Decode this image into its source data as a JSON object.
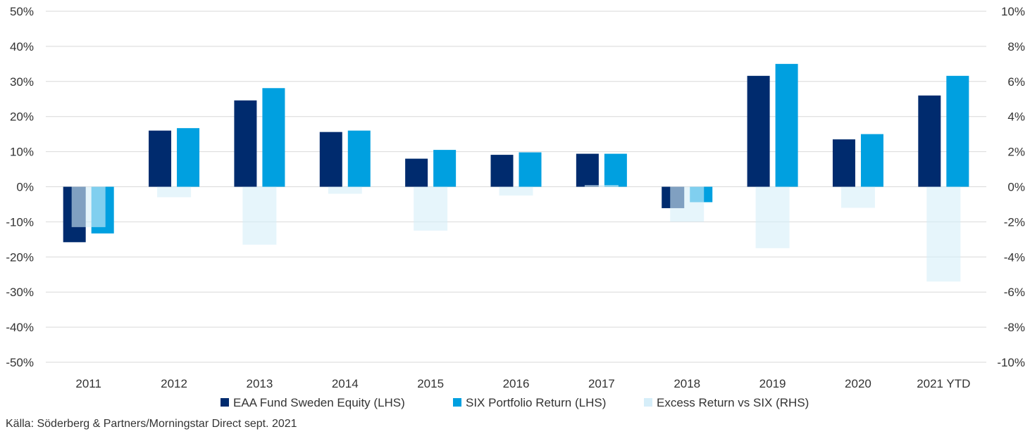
{
  "chart_data": {
    "type": "bar",
    "categories": [
      "2011",
      "2012",
      "2013",
      "2014",
      "2015",
      "2016",
      "2017",
      "2018",
      "2019",
      "2020",
      "2021 YTD"
    ],
    "series": [
      {
        "name": "EAA Fund Sweden Equity (LHS)",
        "axis": "left",
        "color": "#002b6e",
        "values": [
          -15.8,
          16.0,
          24.6,
          15.6,
          8.0,
          9.1,
          9.4,
          -6.1,
          31.6,
          13.5,
          26.0
        ]
      },
      {
        "name": "SIX Portfolio Return (LHS)",
        "axis": "left",
        "color": "#00a0e0",
        "values": [
          -13.3,
          16.7,
          28.1,
          16.0,
          10.5,
          9.8,
          9.4,
          -4.4,
          35.0,
          15.0,
          31.6
        ]
      },
      {
        "name": "Excess Return vs SIX (RHS)",
        "axis": "right",
        "color": "#d6eef9",
        "values": [
          -2.3,
          -0.6,
          -3.3,
          -0.4,
          -2.5,
          -0.5,
          0.1,
          -2.0,
          -3.5,
          -1.2,
          -5.4
        ]
      }
    ],
    "left_axis": {
      "min": -50,
      "max": 50,
      "step": 10,
      "ticks": [
        "-50%",
        "-40%",
        "-30%",
        "-20%",
        "-10%",
        "0%",
        "10%",
        "20%",
        "30%",
        "40%",
        "50%"
      ]
    },
    "right_axis": {
      "min": -10,
      "max": 10,
      "step": 2,
      "ticks": [
        "-10%",
        "-8%",
        "-6%",
        "-4%",
        "-2%",
        "0%",
        "2%",
        "4%",
        "6%",
        "8%",
        "10%"
      ]
    },
    "grid": true,
    "legend_position": "bottom"
  },
  "source_text": "Källa: Söderberg & Partners/Morningstar Direct sept. 2021"
}
